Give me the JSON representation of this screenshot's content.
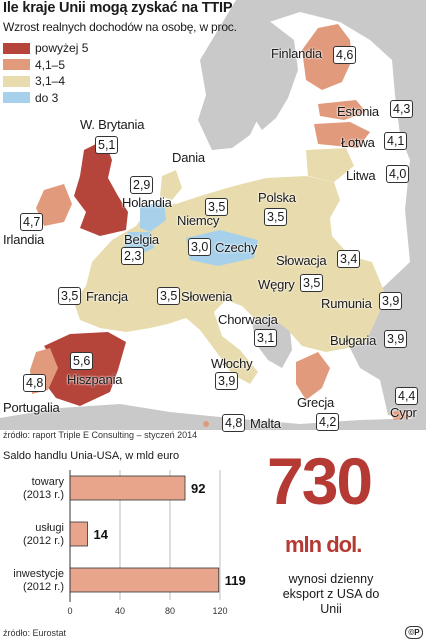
{
  "title": "Ile kraje Unii mogą zyskać na TTIP",
  "subtitle": "Wzrost realnych dochodów na osobę, w proc.",
  "legend": [
    {
      "label": "powyżej 5",
      "color": "#b5443b"
    },
    {
      "label": "4,1–5",
      "color": "#e19a7c"
    },
    {
      "label": "3,1–4",
      "color": "#e8dcae"
    },
    {
      "label": "do 3",
      "color": "#a7d1ea"
    }
  ],
  "countries": {
    "finlandia": {
      "name": "Finlandia",
      "value": "4,6"
    },
    "estonia": {
      "name": "Estonia",
      "value": "4,3"
    },
    "lotwa": {
      "name": "Łotwa",
      "value": "4,1"
    },
    "litwa": {
      "name": "Litwa",
      "value": "4,0"
    },
    "wbrytania": {
      "name": "W. Brytania",
      "value": "5,1"
    },
    "dania": {
      "name": "Dania",
      "value": "2,9"
    },
    "holandia": {
      "name": "Holandia"
    },
    "irlandia": {
      "name": "Irlandia",
      "value": "4,7"
    },
    "niemcy": {
      "name": "Niemcy",
      "value": "3,5"
    },
    "polska": {
      "name": "Polska",
      "value": "3,5"
    },
    "belgia": {
      "name": "Belgia",
      "value": "2,3"
    },
    "czechy": {
      "name": "Czechy",
      "value": "3,0"
    },
    "slowacja": {
      "name": "Słowacja",
      "value": "3,4"
    },
    "wegry": {
      "name": "Węgry",
      "value": "3,5"
    },
    "francja": {
      "name": "Francja",
      "value": "3,5"
    },
    "slowenia": {
      "name": "Słowenia",
      "value": "3,5"
    },
    "rumunia": {
      "name": "Rumunia",
      "value": "3,9"
    },
    "chorwacja": {
      "name": "Chorwacja",
      "value": "3,1"
    },
    "bulgaria": {
      "name": "Bułgaria",
      "value": "3,9"
    },
    "hiszpania": {
      "name": "Hiszpania",
      "value": "5,6"
    },
    "portugalia": {
      "name": "Portugalia",
      "value": "4,8"
    },
    "wlochy": {
      "name": "Włochy",
      "value": "3,9"
    },
    "grecja": {
      "name": "Grecja",
      "value": "4,2"
    },
    "cypr": {
      "name": "Cypr",
      "value": "4,4"
    },
    "malta": {
      "name": "Malta",
      "value": "4,8"
    }
  },
  "map_source": "źródło: raport Triple E Consulting – styczeń 2014",
  "chart_data": [
    {
      "type": "map",
      "title": "Ile kraje Unii mogą zyskać na TTIP",
      "subtitle": "Wzrost realnych dochodów na osobę, w proc.",
      "categories": [
        "Finlandia",
        "Estonia",
        "Łotwa",
        "Litwa",
        "W. Brytania",
        "Dania",
        "Irlandia",
        "Niemcy",
        "Polska",
        "Belgia",
        "Czechy",
        "Słowacja",
        "Węgry",
        "Francja",
        "Słowenia",
        "Rumunia",
        "Chorwacja",
        "Bułgaria",
        "Hiszpania",
        "Portugalia",
        "Włochy",
        "Grecja",
        "Cypr",
        "Malta"
      ],
      "values": [
        4.6,
        4.3,
        4.1,
        4.0,
        5.1,
        2.9,
        4.7,
        3.5,
        3.5,
        2.3,
        3.0,
        3.4,
        3.5,
        3.5,
        3.5,
        3.9,
        3.1,
        3.9,
        5.6,
        4.8,
        3.9,
        4.2,
        4.4,
        4.8
      ]
    },
    {
      "type": "bar",
      "orientation": "horizontal",
      "title": "Saldo handlu Unia-USA, w mld euro",
      "categories": [
        "towary (2013 r.)",
        "usługi (2012 r.)",
        "inwestycje (2012 r.)"
      ],
      "category_lines": [
        [
          "towary",
          "(2013 r.)"
        ],
        [
          "usługi",
          "(2012 r.)"
        ],
        [
          "inwestycje",
          "(2012 r.)"
        ]
      ],
      "values": [
        92,
        14,
        119
      ],
      "value_labels": [
        "92",
        "14",
        "119"
      ],
      "xlim": [
        0,
        120
      ],
      "xticks": [
        0,
        40,
        80,
        120
      ],
      "bar_color": "#e9a58b"
    }
  ],
  "bar_source": "źródło: Eurostat",
  "highlight": {
    "number": "730",
    "unit": "mln dol.",
    "desc": "wynosi dzienny eksport z USA do Unii"
  },
  "logo_text": "©P"
}
